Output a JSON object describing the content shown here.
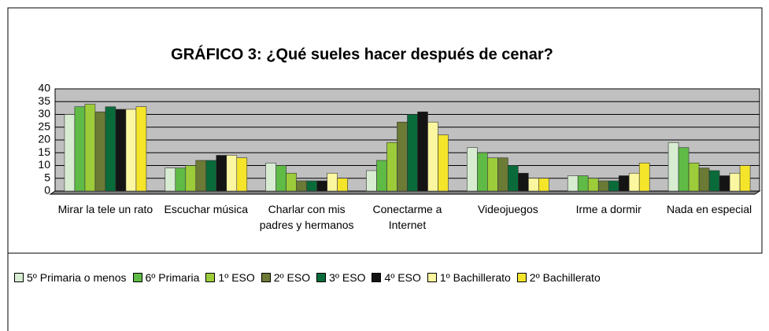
{
  "chart_data": {
    "type": "bar",
    "title": "GRÁFICO 3: ¿Qué sueles hacer después de cenar?",
    "categories": [
      "Mirar la tele un rato",
      "Escuchar música",
      "Charlar con mis padres y hermanos",
      "Conectarme a Internet",
      "Videojuegos",
      "Irme a dormir",
      "Nada en especial"
    ],
    "series": [
      {
        "name": "5º Primaria o menos",
        "color": "#d8ecd2",
        "values": [
          30,
          9,
          11,
          8,
          17,
          6,
          19
        ]
      },
      {
        "name": "6º Primaria",
        "color": "#5fbb46",
        "values": [
          33,
          9,
          10,
          12,
          15,
          6,
          17
        ]
      },
      {
        "name": "1º ESO",
        "color": "#9ccc3a",
        "values": [
          34,
          10,
          7,
          19,
          13,
          5,
          11
        ]
      },
      {
        "name": "2º ESO",
        "color": "#6b7a35",
        "values": [
          31,
          12,
          4,
          27,
          13,
          4,
          9
        ]
      },
      {
        "name": "3º ESO",
        "color": "#0a6b3a",
        "values": [
          33,
          12,
          4,
          30,
          10,
          4,
          8
        ]
      },
      {
        "name": "4º ESO",
        "color": "#141414",
        "values": [
          32,
          14,
          4,
          31,
          7,
          6,
          6
        ]
      },
      {
        "name": "1º Bachillerato",
        "color": "#fbf7a0",
        "values": [
          32,
          14,
          7,
          27,
          5,
          7,
          7
        ]
      },
      {
        "name": "2º Bachillerato",
        "color": "#f5e52a",
        "values": [
          33,
          13,
          5,
          22,
          5,
          11,
          10
        ]
      }
    ],
    "ylim": [
      0,
      40
    ],
    "yticks": [
      0,
      5,
      10,
      15,
      20,
      25,
      30,
      35,
      40
    ],
    "grid": true
  }
}
